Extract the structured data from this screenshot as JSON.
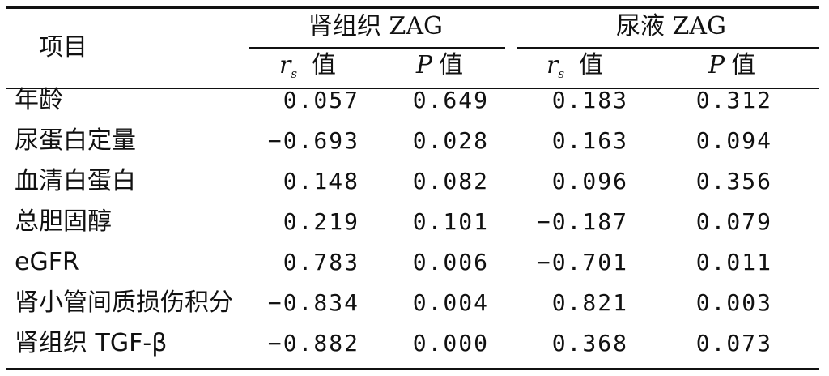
{
  "table": {
    "header": {
      "item_label": "项目",
      "group1_label": "肾组织 ZAG",
      "group2_label": "尿液 ZAG",
      "sub_columns": [
        {
          "var": "r",
          "sub": "s",
          "word": "值"
        },
        {
          "var": "P",
          "sub": "",
          "word": "值"
        },
        {
          "var": "r",
          "sub": "s",
          "word": "值"
        },
        {
          "var": "P",
          "sub": "",
          "word": "值"
        }
      ]
    },
    "rows": [
      {
        "label": "年龄",
        "values": [
          "0.057",
          "0.649",
          "0.183",
          "0.312"
        ]
      },
      {
        "label": "尿蛋白定量",
        "values": [
          "−0.693",
          "0.028",
          "0.163",
          "0.094"
        ]
      },
      {
        "label": "血清白蛋白",
        "values": [
          "0.148",
          "0.082",
          "0.096",
          "0.356"
        ]
      },
      {
        "label": "总胆固醇",
        "values": [
          "0.219",
          "0.101",
          "−0.187",
          "0.079"
        ]
      },
      {
        "label": "eGFR",
        "values": [
          "0.783",
          "0.006",
          "−0.701",
          "0.011"
        ]
      },
      {
        "label": "肾小管间质损伤积分",
        "values": [
          "−0.834",
          "0.004",
          "0.821",
          "0.003"
        ]
      },
      {
        "label": "肾组织 TGF-β",
        "values": [
          "−0.882",
          "0.000",
          "0.368",
          "0.073"
        ]
      }
    ]
  }
}
